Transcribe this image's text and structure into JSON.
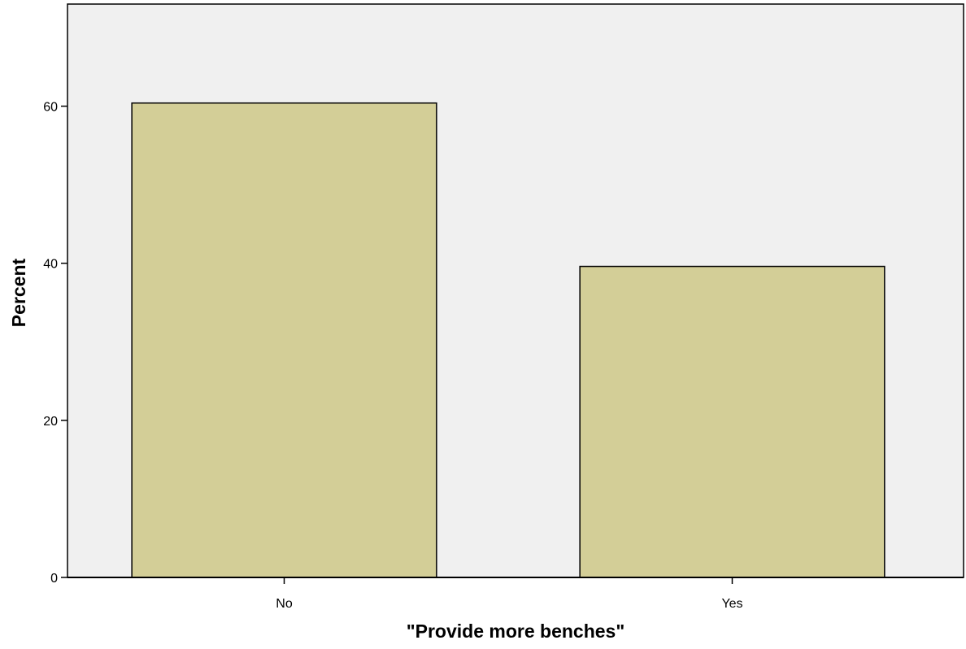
{
  "chart_data": {
    "type": "bar",
    "title": "",
    "xlabel": "\"Provide more benches\"",
    "ylabel": "Percent",
    "categories": [
      "No",
      "Yes"
    ],
    "values": [
      60.4,
      39.6
    ],
    "ylim": [
      0,
      73
    ],
    "yticks": [
      0,
      20,
      40,
      60
    ],
    "ytick_labels": [
      "0",
      "20",
      "40",
      "60"
    ],
    "grid": false,
    "legend": "none",
    "colors": {
      "plot_background": "#f0f0f0",
      "bar_fill": "#d3ce97",
      "bar_stroke": "#000000",
      "axis": "#000000"
    }
  }
}
